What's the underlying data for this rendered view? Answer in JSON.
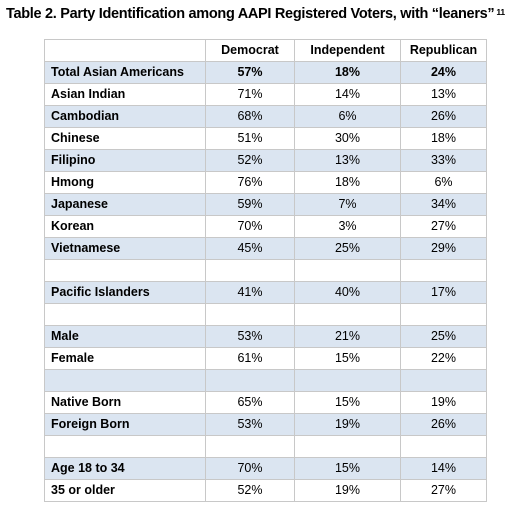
{
  "caption": {
    "text": "Table 2. Party Identification among AAPI Registered Voters, with “leaners”",
    "footnote": "11"
  },
  "table": {
    "headers": [
      "",
      "Democrat",
      "Independent",
      "Republican"
    ],
    "rows": [
      {
        "label": "Total Asian Americans",
        "values": [
          "57%",
          "18%",
          "24%"
        ],
        "shade": true
      },
      {
        "label": "Asian Indian",
        "values": [
          "71%",
          "14%",
          "13%"
        ],
        "shade": false
      },
      {
        "label": "Cambodian",
        "values": [
          "68%",
          "6%",
          "26%"
        ],
        "shade": true
      },
      {
        "label": "Chinese",
        "values": [
          "51%",
          "30%",
          "18%"
        ],
        "shade": false
      },
      {
        "label": "Filipino",
        "values": [
          "52%",
          "13%",
          "33%"
        ],
        "shade": true
      },
      {
        "label": "Hmong",
        "values": [
          "76%",
          "18%",
          "6%"
        ],
        "shade": false
      },
      {
        "label": "Japanese",
        "values": [
          "59%",
          "7%",
          "34%"
        ],
        "shade": true
      },
      {
        "label": "Korean",
        "values": [
          "70%",
          "3%",
          "27%"
        ],
        "shade": false
      },
      {
        "label": "Vietnamese",
        "values": [
          "45%",
          "25%",
          "29%"
        ],
        "shade": true
      },
      {
        "label": "",
        "values": [
          "",
          "",
          ""
        ],
        "shade": false
      },
      {
        "label": "Pacific Islanders",
        "values": [
          "41%",
          "40%",
          "17%"
        ],
        "shade": true
      },
      {
        "label": "",
        "values": [
          "",
          "",
          ""
        ],
        "shade": false
      },
      {
        "label": "Male",
        "values": [
          "53%",
          "21%",
          "25%"
        ],
        "shade": true
      },
      {
        "label": "Female",
        "values": [
          "61%",
          "15%",
          "22%"
        ],
        "shade": false
      },
      {
        "label": "",
        "values": [
          "",
          "",
          ""
        ],
        "shade": true
      },
      {
        "label": "Native Born",
        "values": [
          "65%",
          "15%",
          "19%"
        ],
        "shade": false
      },
      {
        "label": "Foreign Born",
        "values": [
          "53%",
          "19%",
          "26%"
        ],
        "shade": true
      },
      {
        "label": "",
        "values": [
          "",
          "",
          ""
        ],
        "shade": false
      },
      {
        "label": "Age 18 to 34",
        "values": [
          "70%",
          "15%",
          "14%"
        ],
        "shade": true
      },
      {
        "label": "35 or older",
        "values": [
          "52%",
          "19%",
          "27%"
        ],
        "shade": false
      }
    ]
  },
  "colors": {
    "band": "#dbe5f1",
    "border": "#c8c8c8"
  }
}
